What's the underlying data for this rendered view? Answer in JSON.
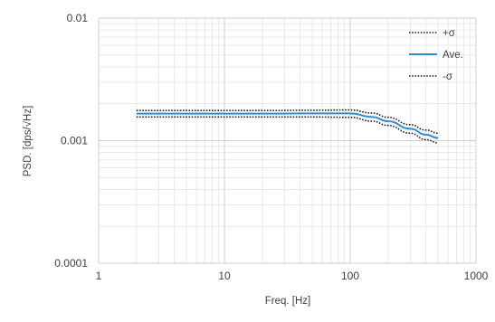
{
  "chart_data": {
    "type": "line",
    "title": "",
    "xlabel": "Freq. [Hz]",
    "ylabel": "PSD. [dps/√Hz]",
    "x_scale": "log",
    "y_scale": "log",
    "xlim": [
      1,
      1000
    ],
    "ylim": [
      0.0001,
      0.01
    ],
    "x_ticks": [
      {
        "value": 1,
        "label": "1"
      },
      {
        "value": 10,
        "label": "10"
      },
      {
        "value": 100,
        "label": "100"
      },
      {
        "value": 1000,
        "label": "1000"
      }
    ],
    "y_ticks": [
      {
        "value": 0.0001,
        "label": "0.0001"
      },
      {
        "value": 0.001,
        "label": "0.001"
      },
      {
        "value": 0.01,
        "label": "0.01"
      }
    ],
    "grid": true,
    "legend_position": "top-right",
    "series": [
      {
        "name": "+σ",
        "style": "dotted",
        "color": "#222222",
        "x": [
          2,
          5,
          10,
          20,
          50,
          100,
          150,
          200,
          300,
          400,
          500
        ],
        "y": [
          0.00176,
          0.00176,
          0.00176,
          0.00176,
          0.00177,
          0.00178,
          0.00168,
          0.00155,
          0.00135,
          0.00122,
          0.00115
        ]
      },
      {
        "name": "Ave.",
        "style": "solid",
        "color": "#2e8fd0",
        "x": [
          2,
          5,
          10,
          20,
          50,
          100,
          150,
          200,
          300,
          400,
          500
        ],
        "y": [
          0.00166,
          0.00166,
          0.00166,
          0.00166,
          0.00167,
          0.00167,
          0.00156,
          0.00144,
          0.00125,
          0.00112,
          0.00105
        ]
      },
      {
        "name": "-σ",
        "style": "dotted",
        "color": "#222222",
        "x": [
          2,
          5,
          10,
          20,
          50,
          100,
          150,
          200,
          300,
          400,
          500
        ],
        "y": [
          0.00156,
          0.00156,
          0.00156,
          0.00156,
          0.00156,
          0.00155,
          0.00144,
          0.00133,
          0.00115,
          0.00102,
          0.00096
        ]
      }
    ]
  }
}
